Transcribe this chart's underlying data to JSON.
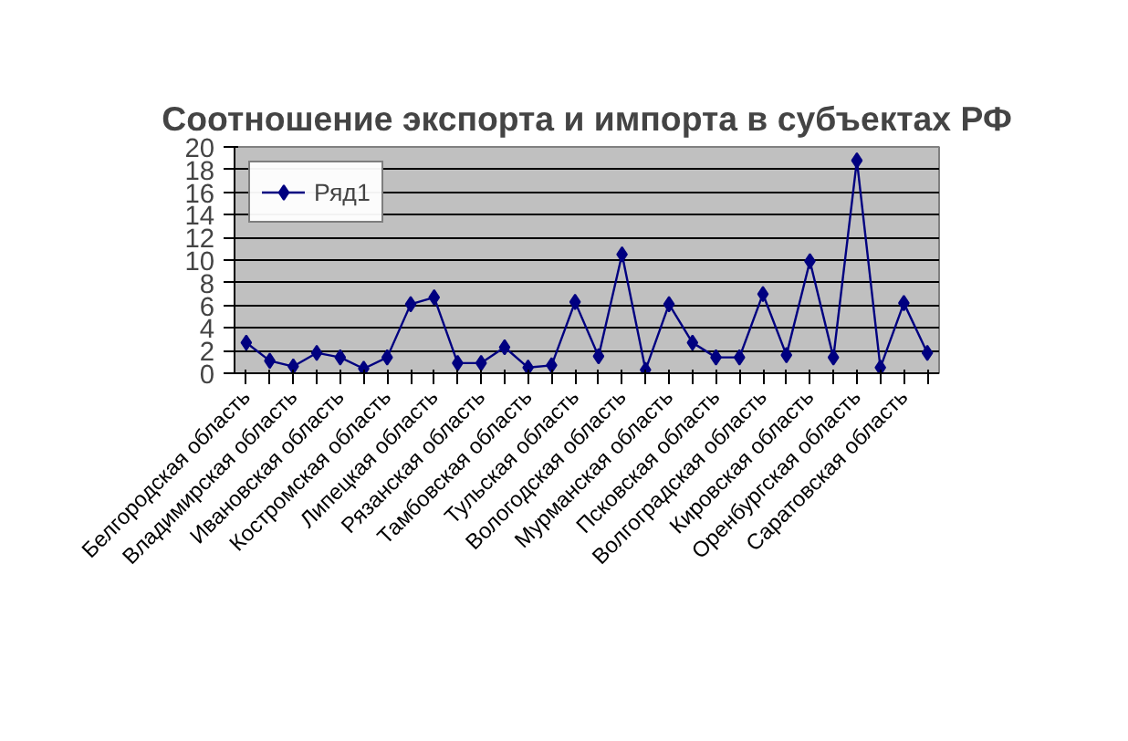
{
  "chart_data": {
    "type": "line",
    "title": "Соотношение экспорта и импорта в субъектах РФ",
    "categories": [
      "Белгородская область",
      null,
      "Владимирская область",
      null,
      "Ивановская область",
      null,
      "Костромская область",
      null,
      "Липецкая область",
      null,
      "Рязанская область",
      null,
      "Тамбовская область",
      null,
      "Тульская область",
      null,
      "Вологодская область",
      null,
      "Мурманская область",
      null,
      "Псковская область",
      null,
      "Волгоградская область",
      null,
      "Кировская область",
      null,
      "Оренбургская область",
      null,
      "Саратовская область",
      null
    ],
    "series": [
      {
        "name": "Ряд1",
        "color": "#000080",
        "values": [
          2.7,
          1.1,
          0.6,
          1.8,
          1.4,
          0.4,
          1.4,
          6.1,
          6.7,
          0.9,
          0.9,
          2.3,
          0.5,
          0.7,
          6.3,
          1.5,
          10.5,
          0.3,
          6.1,
          2.7,
          1.4,
          1.4,
          7.0,
          1.6,
          9.9,
          1.4,
          18.8,
          0.5,
          6.2,
          1.8
        ]
      }
    ],
    "ylim": [
      0,
      20
    ],
    "yticks": [
      0,
      2,
      4,
      6,
      8,
      10,
      12,
      14,
      16,
      18,
      20
    ],
    "grid": "y",
    "legend": "top left",
    "marker": "diamond",
    "line_style": "solid"
  }
}
